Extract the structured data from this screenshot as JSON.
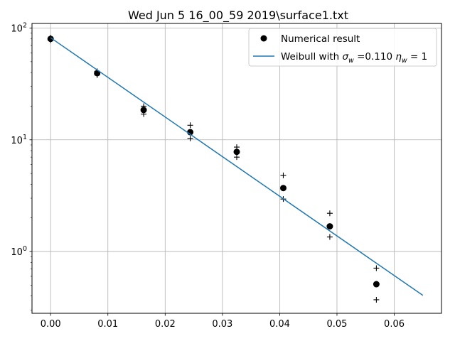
{
  "chart_data": {
    "type": "scatter",
    "title": "Wed Jun  5 16_00_59 2019\\surface1.txt",
    "xlabel": "",
    "ylabel": "",
    "xlim": [
      -0.00325,
      0.06825
    ],
    "ylim": [
      0.28,
      110
    ],
    "yscale": "log",
    "grid": true,
    "legend_position": "top-right",
    "x_ticks": [
      0.0,
      0.01,
      0.02,
      0.03,
      0.04,
      0.05,
      0.06
    ],
    "x_tick_labels": [
      "0.00",
      "0.01",
      "0.02",
      "0.03",
      "0.04",
      "0.05",
      "0.06"
    ],
    "y_ticks": [
      1,
      10,
      100
    ],
    "y_tick_labels": [
      {
        "base": "10",
        "exp": "0"
      },
      {
        "base": "10",
        "exp": "1"
      },
      {
        "base": "10",
        "exp": "2"
      }
    ],
    "series": [
      {
        "name": "Numerical result",
        "kind": "markers",
        "marker": "circle",
        "color": "#000000",
        "x": [
          0.0,
          0.00813,
          0.01625,
          0.02438,
          0.0325,
          0.04063,
          0.04875,
          0.05688
        ],
        "y": [
          80,
          39.5,
          18.5,
          11.7,
          7.8,
          3.7,
          1.68,
          0.51
        ]
      },
      {
        "name": "",
        "kind": "plus-bounds",
        "color": "#000000",
        "x": [
          0.0,
          0.00813,
          0.01625,
          0.02438,
          0.0325,
          0.04063,
          0.04875,
          0.05688
        ],
        "upper": [
          82,
          41,
          20,
          13.5,
          8.6,
          4.8,
          2.2,
          0.71
        ],
        "lower": [
          78,
          38,
          17,
          10.3,
          7.0,
          2.95,
          1.35,
          0.37
        ]
      },
      {
        "name": "Weibull with σw =0.110 ηw = 1",
        "kind": "line",
        "color": "#1f77b4",
        "x": [
          0.0,
          0.065
        ],
        "y": [
          82,
          0.405
        ]
      }
    ],
    "legend": [
      {
        "kind": "marker",
        "label": "Numerical result",
        "color": "#000000"
      },
      {
        "kind": "line",
        "color": "#1f77b4",
        "parts": [
          {
            "t": "Weibull with ",
            "style": "normal"
          },
          {
            "t": "σ",
            "style": "italic"
          },
          {
            "t": "w",
            "style": "sub"
          },
          {
            "t": " =0.110 ",
            "style": "normal"
          },
          {
            "t": "η",
            "style": "italic"
          },
          {
            "t": "w",
            "style": "sub"
          },
          {
            "t": " = 1",
            "style": "normal"
          }
        ]
      }
    ]
  }
}
